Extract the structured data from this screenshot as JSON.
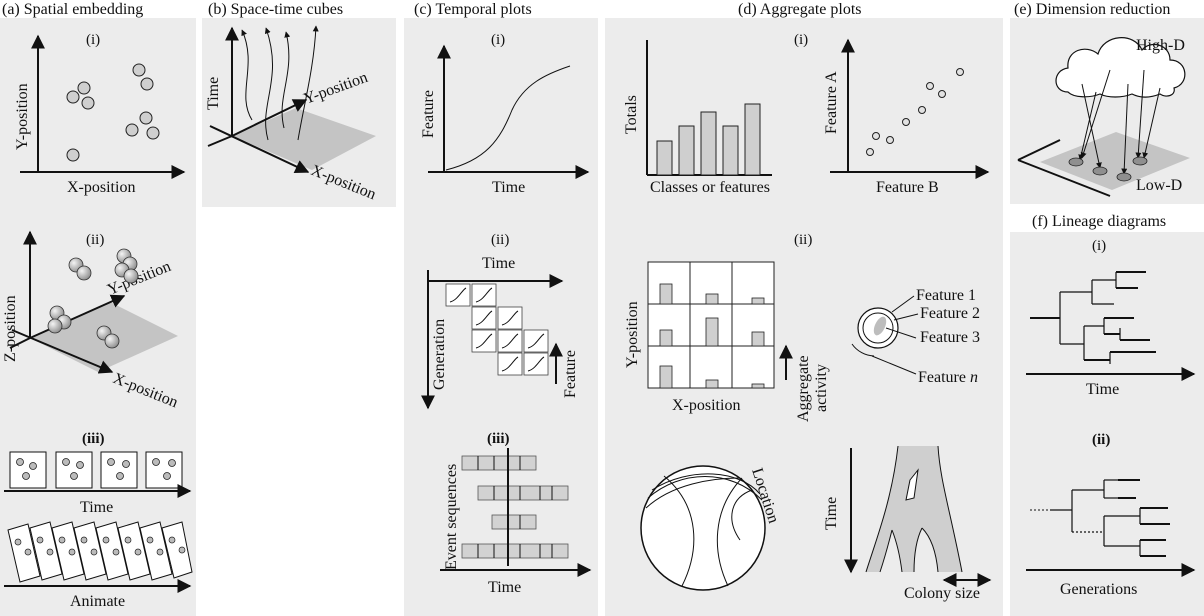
{
  "panels": {
    "a": {
      "title": "(a) Spatial embedding",
      "i": "(i)",
      "ii": "(ii)",
      "iii": "(iii)",
      "y_position": "Y-position",
      "x_position": "X-position",
      "z_position": "Z-position",
      "time": "Time",
      "animate": "Animate"
    },
    "b": {
      "title": "(b) Space-time cubes",
      "time": "Time",
      "y_position": "Y-position",
      "x_position": "X-position"
    },
    "c": {
      "title": "(c) Temporal plots",
      "i": "(i)",
      "ii": "(ii)",
      "iii": "(iii)",
      "feature": "Feature",
      "time": "Time",
      "generation": "Generation",
      "event_sequences": "Event sequences"
    },
    "d": {
      "title": "(d) Aggregate plots",
      "i_left": "(i)",
      "ii": "(ii)",
      "totals": "Totals",
      "classes": "Classes or features",
      "feature_a": "Feature A",
      "feature_b": "Feature B",
      "y_position": "Y-position",
      "x_position": "X-position",
      "aggregate": "Aggregate",
      "activity": "activity",
      "f1": "Feature 1",
      "f2": "Feature 2",
      "f3": "Feature 3",
      "fn_prefix": "Feature ",
      "fn_italic": "n",
      "location": "Location",
      "time": "Time",
      "colony_size": "Colony size"
    },
    "e": {
      "title": "(e) Dimension reduction",
      "high_d": "High-D",
      "low_d": "Low-D"
    },
    "f": {
      "title": "(f) Lineage diagrams",
      "i": "(i)",
      "ii": "(ii)",
      "time": "Time",
      "generations": "Generations"
    }
  }
}
